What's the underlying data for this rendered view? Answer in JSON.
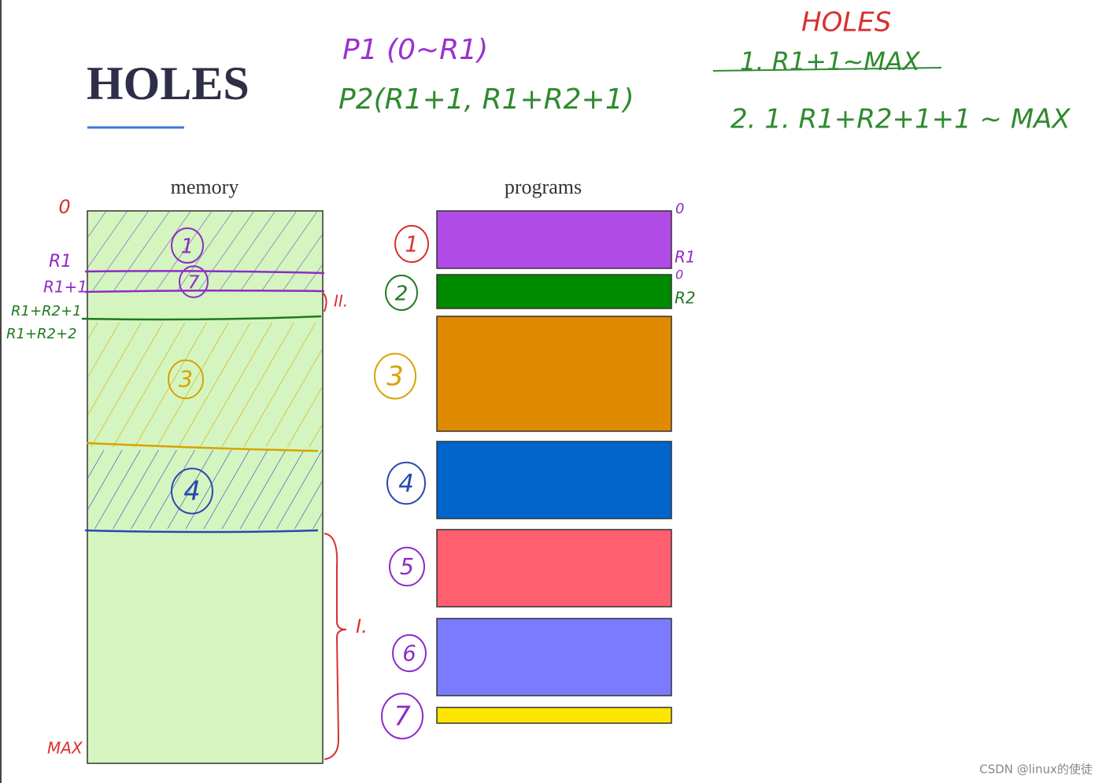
{
  "title": "HOLES",
  "memory_label": "memory",
  "programs_label": "programs",
  "notes": {
    "p1": "P1 (0~R1)",
    "p2": "P2(R1+1, R1+R2+1)",
    "holes": "HOLES",
    "hole1": "1. R1+1~MAX",
    "hole2": "2. 1. R1+R2+1+1 ~ MAX"
  },
  "memory_marks": {
    "start": "0",
    "r1": "R1",
    "r1p1": "R1+1",
    "r1r2p1": "R1+R2+1",
    "r1r2p2": "R1+R2+2",
    "max": "MAX",
    "gap2": "II.",
    "gap1": "I."
  },
  "memory_regions": [
    "1",
    "7",
    "3",
    "4"
  ],
  "programs": [
    {
      "label": "1",
      "color": "#b04be6"
    },
    {
      "label": "2",
      "color": "#008a00"
    },
    {
      "label": "3",
      "color": "#e08a00"
    },
    {
      "label": "4",
      "color": "#0066cc"
    },
    {
      "label": "5",
      "color": "#ff5f6f"
    },
    {
      "label": "6",
      "color": "#7b7bff"
    },
    {
      "label": "7",
      "color": "#ffe600"
    }
  ],
  "program_marks": {
    "p1_start": "0",
    "p1_end": "R1",
    "p2_start": "0",
    "p2_end": "R2"
  },
  "watermark": "CSDN @linux的使徒"
}
